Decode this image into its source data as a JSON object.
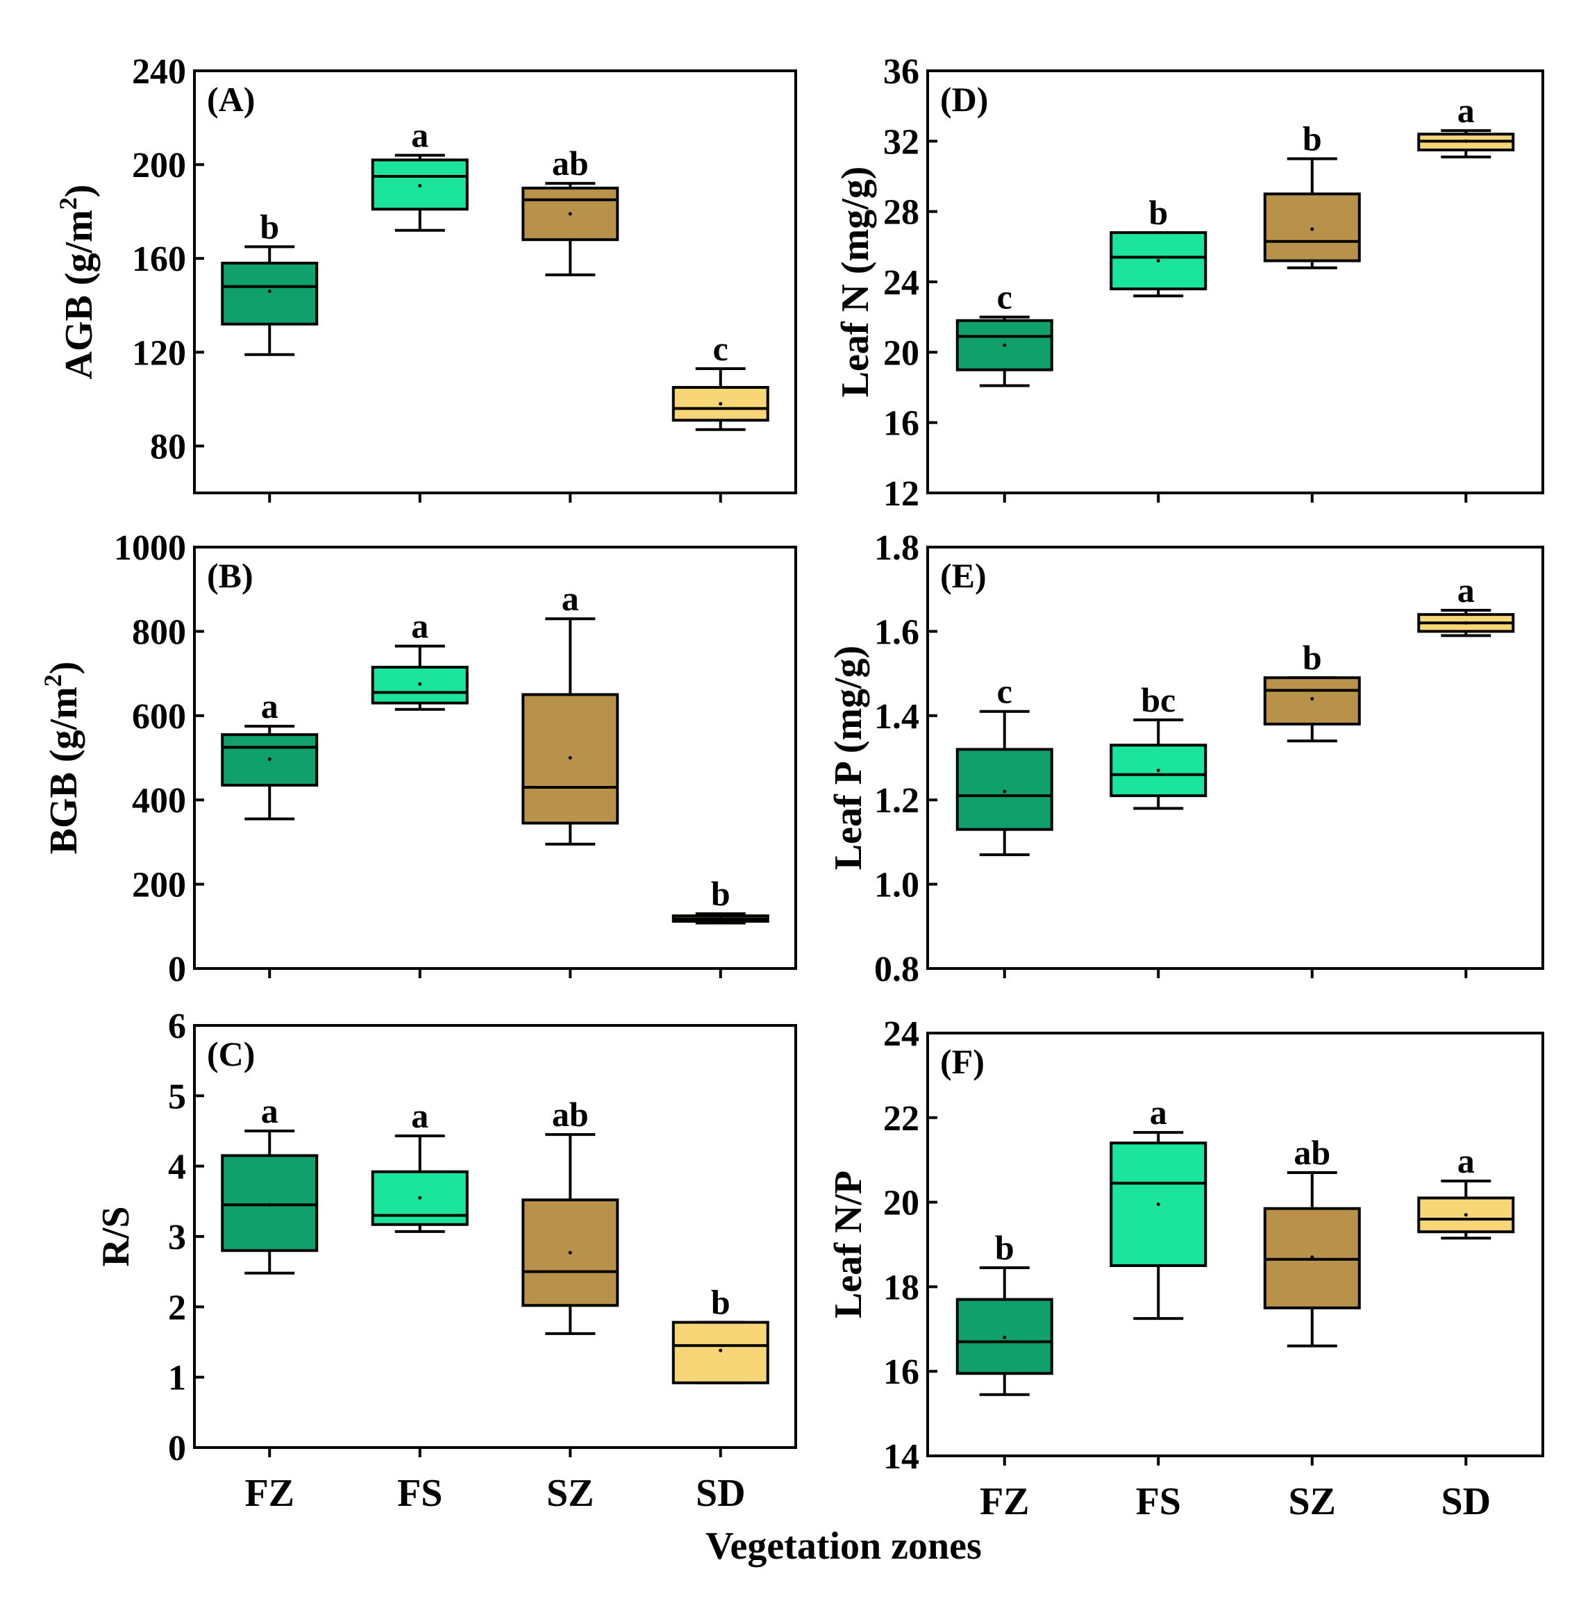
{
  "colors": {
    "FZ": "#0fa06b",
    "FS": "#1be59c",
    "SZ": "#b8914b",
    "SD": "#f6d677"
  },
  "chart_data": [
    {
      "type": "box",
      "panel_label": "(A)",
      "ylabel": "AGB (g/m",
      "ylabel_sup": "2",
      "ylabel_end": ")",
      "ylim": [
        60,
        240
      ],
      "yticks": [
        80,
        120,
        160,
        200,
        240
      ],
      "categories": [
        "FZ",
        "FS",
        "SZ",
        "SD"
      ],
      "boxes": [
        {
          "category": "FZ",
          "whisker_low": 119,
          "q1": 132,
          "median": 148,
          "q3": 158,
          "whisker_high": 165,
          "mean": 146,
          "letter": "b"
        },
        {
          "category": "FS",
          "whisker_low": 172,
          "q1": 181,
          "median": 195,
          "q3": 202,
          "whisker_high": 204,
          "mean": 191,
          "letter": "a"
        },
        {
          "category": "SZ",
          "whisker_low": 153,
          "q1": 168,
          "median": 185,
          "q3": 190,
          "whisker_high": 192,
          "mean": 179,
          "letter": "ab"
        },
        {
          "category": "SD",
          "whisker_low": 87,
          "q1": 91,
          "median": 96,
          "q3": 105,
          "whisker_high": 113,
          "mean": 98,
          "letter": "c"
        }
      ]
    },
    {
      "type": "box",
      "panel_label": "(B)",
      "ylabel": "BGB (g/m",
      "ylabel_sup": "2",
      "ylabel_end": ")",
      "ylim": [
        0,
        1000
      ],
      "yticks": [
        0,
        200,
        400,
        600,
        800,
        1000
      ],
      "categories": [
        "FZ",
        "FS",
        "SZ",
        "SD"
      ],
      "boxes": [
        {
          "category": "FZ",
          "whisker_low": 355,
          "q1": 435,
          "median": 525,
          "q3": 555,
          "whisker_high": 575,
          "mean": 497,
          "letter": "a"
        },
        {
          "category": "FS",
          "whisker_low": 615,
          "q1": 630,
          "median": 655,
          "q3": 715,
          "whisker_high": 765,
          "mean": 675,
          "letter": "a"
        },
        {
          "category": "SZ",
          "whisker_low": 295,
          "q1": 345,
          "median": 430,
          "q3": 650,
          "whisker_high": 830,
          "mean": 500,
          "letter": "a"
        },
        {
          "category": "SD",
          "whisker_low": 108,
          "q1": 112,
          "median": 118,
          "q3": 125,
          "whisker_high": 130,
          "mean": 118,
          "letter": "b"
        }
      ]
    },
    {
      "type": "box",
      "panel_label": "(C)",
      "ylabel": "R/S",
      "ylim": [
        0,
        6
      ],
      "yticks": [
        0,
        1,
        2,
        3,
        4,
        5,
        6
      ],
      "categories": [
        "FZ",
        "FS",
        "SZ",
        "SD"
      ],
      "boxes": [
        {
          "category": "FZ",
          "whisker_low": 2.48,
          "q1": 2.8,
          "median": 3.45,
          "q3": 4.15,
          "whisker_high": 4.5,
          "mean": 3.45,
          "letter": "a"
        },
        {
          "category": "FS",
          "whisker_low": 3.07,
          "q1": 3.17,
          "median": 3.3,
          "q3": 3.92,
          "whisker_high": 4.43,
          "mean": 3.55,
          "letter": "a"
        },
        {
          "category": "SZ",
          "whisker_low": 1.62,
          "q1": 2.02,
          "median": 2.5,
          "q3": 3.52,
          "whisker_high": 4.45,
          "mean": 2.77,
          "letter": "ab"
        },
        {
          "category": "SD",
          "whisker_low": 0.92,
          "q1": 0.92,
          "median": 1.45,
          "q3": 1.78,
          "whisker_high": 1.78,
          "mean": 1.38,
          "letter": "b"
        }
      ]
    },
    {
      "type": "box",
      "panel_label": "(D)",
      "ylabel": "Leaf N (mg/g)",
      "ylim": [
        12,
        36
      ],
      "yticks": [
        12,
        16,
        20,
        24,
        28,
        32,
        36
      ],
      "categories": [
        "FZ",
        "FS",
        "SZ",
        "SD"
      ],
      "boxes": [
        {
          "category": "FZ",
          "whisker_low": 18.1,
          "q1": 19.0,
          "median": 20.9,
          "q3": 21.8,
          "whisker_high": 22.0,
          "mean": 20.4,
          "letter": "c"
        },
        {
          "category": "FS",
          "whisker_low": 23.2,
          "q1": 23.6,
          "median": 25.4,
          "q3": 26.8,
          "whisker_high": 26.8,
          "mean": 25.2,
          "letter": "b"
        },
        {
          "category": "SZ",
          "whisker_low": 24.8,
          "q1": 25.2,
          "median": 26.3,
          "q3": 29.0,
          "whisker_high": 31.0,
          "mean": 27.0,
          "letter": "b"
        },
        {
          "category": "SD",
          "whisker_low": 31.1,
          "q1": 31.5,
          "median": 32.0,
          "q3": 32.4,
          "whisker_high": 32.6,
          "mean": 32.0,
          "letter": "a"
        }
      ]
    },
    {
      "type": "box",
      "panel_label": "(E)",
      "ylabel": "Leaf P (mg/g)",
      "ylim": [
        0.8,
        1.8
      ],
      "yticks": [
        0.8,
        1.0,
        1.2,
        1.4,
        1.6,
        1.8
      ],
      "ytick_labels": [
        "0.8",
        "1.0",
        "1.2",
        "1.4",
        "1.6",
        "1.8"
      ],
      "categories": [
        "FZ",
        "FS",
        "SZ",
        "SD"
      ],
      "boxes": [
        {
          "category": "FZ",
          "whisker_low": 1.07,
          "q1": 1.13,
          "median": 1.21,
          "q3": 1.32,
          "whisker_high": 1.41,
          "mean": 1.22,
          "letter": "c"
        },
        {
          "category": "FS",
          "whisker_low": 1.18,
          "q1": 1.21,
          "median": 1.26,
          "q3": 1.33,
          "whisker_high": 1.39,
          "mean": 1.27,
          "letter": "bc"
        },
        {
          "category": "SZ",
          "whisker_low": 1.34,
          "q1": 1.38,
          "median": 1.46,
          "q3": 1.49,
          "whisker_high": 1.49,
          "mean": 1.44,
          "letter": "b"
        },
        {
          "category": "SD",
          "whisker_low": 1.59,
          "q1": 1.6,
          "median": 1.62,
          "q3": 1.64,
          "whisker_high": 1.65,
          "mean": 1.62,
          "letter": "a"
        }
      ]
    },
    {
      "type": "box",
      "panel_label": "(F)",
      "ylabel": "Leaf N/P",
      "ylim": [
        14,
        24
      ],
      "yticks": [
        14,
        16,
        18,
        20,
        22,
        24
      ],
      "categories": [
        "FZ",
        "FS",
        "SZ",
        "SD"
      ],
      "boxes": [
        {
          "category": "FZ",
          "whisker_low": 15.45,
          "q1": 15.95,
          "median": 16.7,
          "q3": 17.7,
          "whisker_high": 18.45,
          "mean": 16.8,
          "letter": "b"
        },
        {
          "category": "FS",
          "whisker_low": 17.25,
          "q1": 18.5,
          "median": 20.45,
          "q3": 21.4,
          "whisker_high": 21.65,
          "mean": 19.95,
          "letter": "a"
        },
        {
          "category": "SZ",
          "whisker_low": 16.6,
          "q1": 17.5,
          "median": 18.65,
          "q3": 19.85,
          "whisker_high": 20.7,
          "mean": 18.7,
          "letter": "ab"
        },
        {
          "category": "SD",
          "whisker_low": 19.15,
          "q1": 19.3,
          "median": 19.6,
          "q3": 20.1,
          "whisker_high": 20.5,
          "mean": 19.7,
          "letter": "a"
        }
      ]
    }
  ],
  "xaxis_title": "Vegetation zones"
}
